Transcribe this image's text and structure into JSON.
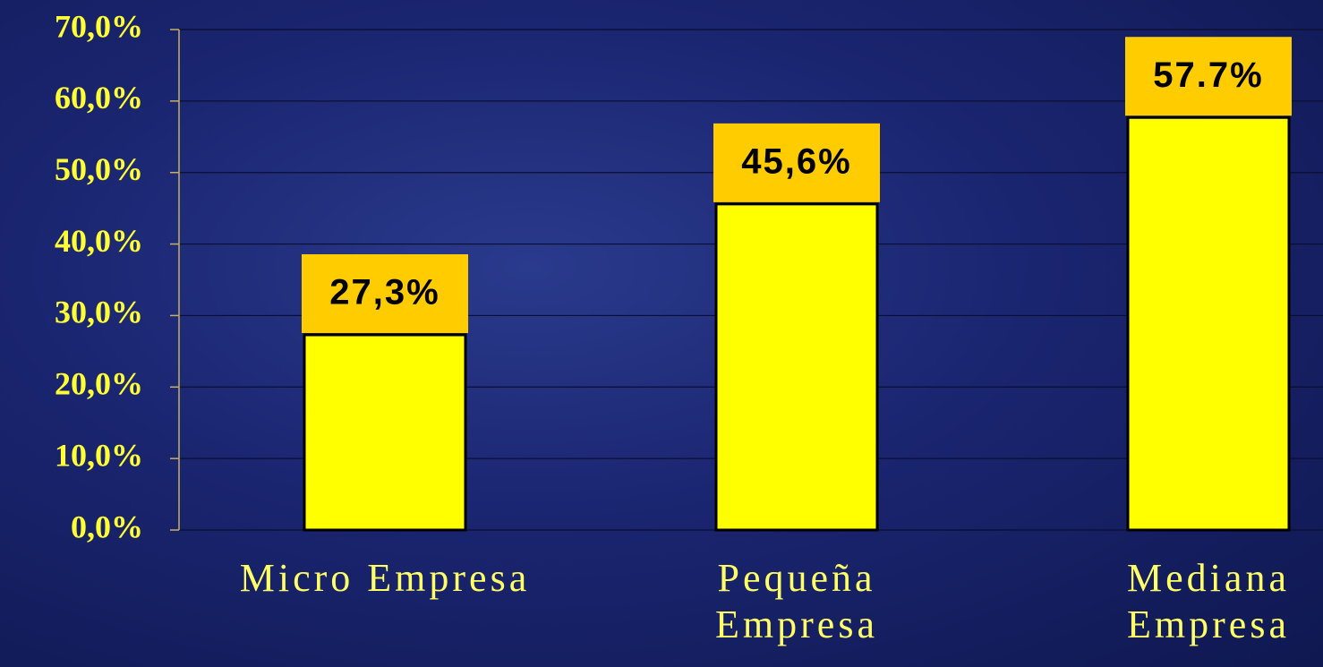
{
  "chart_data": {
    "type": "bar",
    "categories": [
      "Micro Empresa",
      "Pequeña Empresa",
      "Mediana Empresa"
    ],
    "values": [
      27.3,
      45.6,
      57.7
    ],
    "value_labels": [
      "27,3%",
      "45,6%",
      "57.7%"
    ],
    "color": "#ffff00",
    "label_color": "#ffcc00",
    "ylim": [
      0,
      70
    ],
    "yticks": [
      {
        "value": 0,
        "label": "0,0%"
      },
      {
        "value": 10,
        "label": "10,0%"
      },
      {
        "value": 20,
        "label": "20,0%"
      },
      {
        "value": 30,
        "label": "30,0%"
      },
      {
        "value": 40,
        "label": "40,0%"
      },
      {
        "value": 50,
        "label": "50,0%"
      },
      {
        "value": 60,
        "label": "60,0%"
      },
      {
        "value": 70,
        "label": "70,0%"
      }
    ],
    "grid": true
  }
}
